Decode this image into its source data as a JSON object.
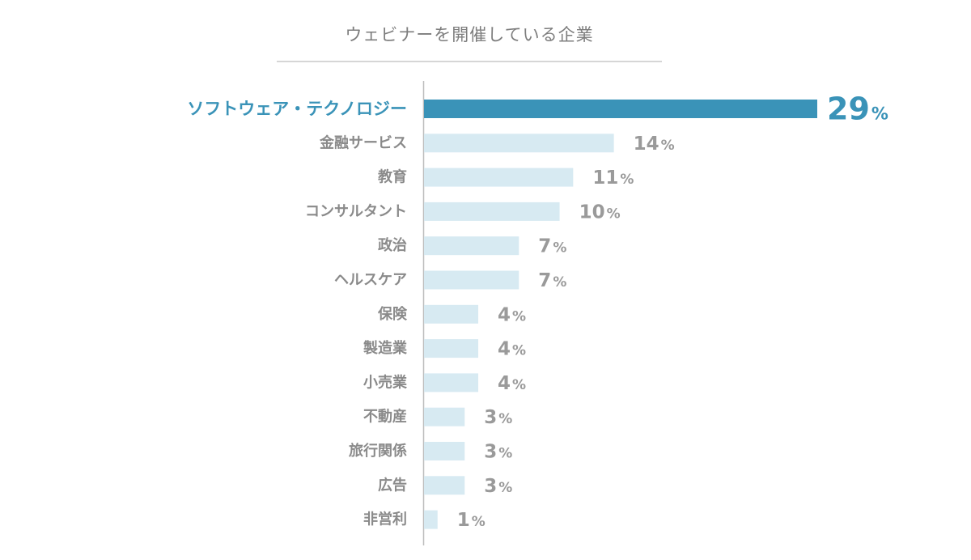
{
  "chart_data": {
    "type": "bar",
    "orientation": "horizontal",
    "title": "ウェビナーを開催している企業",
    "unit": "%",
    "categories": [
      "ソフトウェア・テクノロジー",
      "金融サービス",
      "教育",
      "コンサルタント",
      "政治",
      "ヘルスケア",
      "保険",
      "製造業",
      "小売業",
      "不動産",
      "旅行関係",
      "広告",
      "非営利"
    ],
    "values": [
      29,
      14,
      11,
      10,
      7,
      7,
      4,
      4,
      4,
      3,
      3,
      3,
      1
    ],
    "highlight_index": 0,
    "xlim": [
      0,
      29
    ],
    "grid": false,
    "legend": "none",
    "colors": {
      "highlight": "#3a93b8",
      "bar": "#d7eaf2",
      "label": "#8a8a8a",
      "value": "#9a9a9a",
      "title": "#7d7d7d",
      "axis": "#bdbdbd"
    }
  }
}
